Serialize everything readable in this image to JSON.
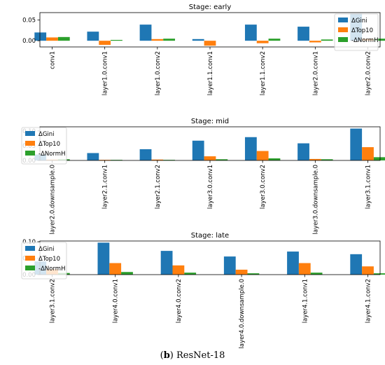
{
  "colors": {
    "gini": "#1f77b4",
    "top10": "#ff7f0e",
    "normh": "#2ca02c"
  },
  "series_names": [
    "ΔGini",
    "ΔTop10",
    "-ΔNormH"
  ],
  "caption": {
    "label": "b",
    "text": "ResNet-18"
  },
  "chart_data": [
    {
      "type": "bar",
      "title": "Stage: early",
      "categories": [
        "conv1",
        "layer1.0.conv1",
        "layer1.0.conv2",
        "layer1.1.conv1",
        "layer1.1.conv2",
        "layer2.0.conv1",
        "layer2.0.conv2"
      ],
      "series": [
        {
          "name": "ΔGini",
          "values": [
            0.02,
            0.022,
            0.039,
            0.004,
            0.039,
            0.034,
            0.065
          ]
        },
        {
          "name": "ΔTop10",
          "values": [
            0.008,
            -0.01,
            0.004,
            -0.012,
            -0.006,
            -0.004,
            0.005
          ]
        },
        {
          "name": "-ΔNormH",
          "values": [
            0.009,
            0.002,
            0.005,
            0.0,
            0.005,
            0.003,
            0.005
          ]
        }
      ],
      "ylim": [
        -0.015,
        0.068
      ],
      "yticks": [
        0.0,
        0.05
      ],
      "ytick_labels": [
        "0.00",
        "0.05"
      ],
      "legend": "top-right"
    },
    {
      "type": "bar",
      "title": "Stage: mid",
      "categories": [
        "layer2.0.downsample.0",
        "layer2.1.conv1",
        "layer2.1.conv2",
        "layer3.0.conv1",
        "layer3.0.conv2",
        "layer3.0.downsample.0",
        "layer3.1.conv1"
      ],
      "series": [
        {
          "name": "ΔGini",
          "values": [
            0.02,
            0.025,
            0.038,
            0.067,
            0.079,
            0.058,
            0.108
          ]
        },
        {
          "name": "ΔTop10",
          "values": [
            0.003,
            0.002,
            0.003,
            0.014,
            0.032,
            0.005,
            0.045
          ]
        },
        {
          "name": "-ΔNormH",
          "values": [
            0.004,
            0.002,
            0.002,
            0.004,
            0.007,
            0.004,
            0.011
          ]
        }
      ],
      "ylim": [
        0,
        0.114
      ],
      "yticks": [
        0.0,
        0.05,
        0.1
      ],
      "ytick_labels": [
        "0.00",
        "0.05",
        "0.10"
      ],
      "legend": "top-left"
    },
    {
      "type": "bar",
      "title": "Stage: late",
      "categories": [
        "layer3.1.conv2",
        "layer4.0.conv1",
        "layer4.0.conv2",
        "layer4.0.downsample.0",
        "layer4.1.conv1",
        "layer4.1.conv2"
      ],
      "series": [
        {
          "name": "ΔGini",
          "values": [
            0.04,
            0.097,
            0.072,
            0.055,
            0.07,
            0.062
          ]
        },
        {
          "name": "ΔTop10",
          "values": [
            0.016,
            0.035,
            0.028,
            0.015,
            0.035,
            0.025
          ]
        },
        {
          "name": "-ΔNormH",
          "values": [
            0.005,
            0.008,
            0.006,
            0.004,
            0.006,
            0.004
          ]
        }
      ],
      "ylim": [
        0,
        0.102
      ],
      "yticks": [
        0.0,
        0.05,
        0.1
      ],
      "ytick_labels": [
        "0.00",
        "0.05",
        "0.10"
      ],
      "legend": "top-left"
    }
  ]
}
